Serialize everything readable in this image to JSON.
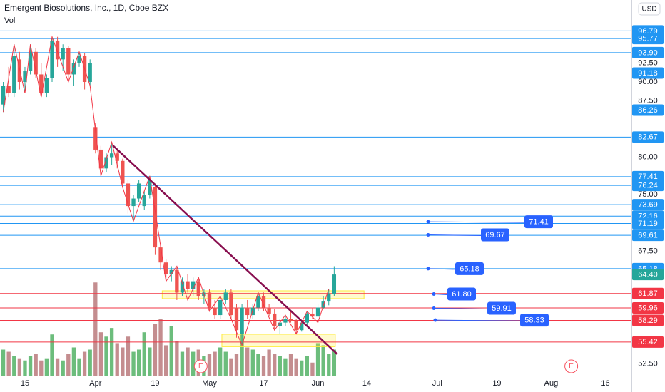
{
  "chart_data": {
    "type": "candlestick",
    "title": "Emergent Biosolutions, Inc., 1D, Cboe BZX",
    "volume_label": "Vol",
    "currency": "USD",
    "x": [
      -4,
      -3,
      -2,
      -1,
      0,
      1,
      2,
      3,
      4,
      5,
      6,
      7,
      8,
      9,
      10,
      11,
      12,
      13,
      14,
      15,
      16,
      17,
      18,
      19,
      20,
      21,
      22,
      23,
      24,
      25,
      26,
      27,
      28,
      29,
      30,
      31,
      32,
      33,
      34,
      35,
      36,
      37,
      38,
      39,
      40,
      41,
      42,
      43,
      44,
      45,
      46,
      47,
      48,
      49,
      50,
      51,
      52,
      53,
      54,
      55,
      56,
      57
    ],
    "open": [
      87,
      89.5,
      88.5,
      93,
      90,
      91.5,
      94,
      91,
      88.5,
      90.5,
      95.5,
      93,
      94.5,
      91,
      92.5,
      93.5,
      90,
      84,
      81,
      78.5,
      80,
      80.5,
      79.5,
      76.5,
      73.5,
      74.5,
      73.5,
      75,
      76,
      68,
      66,
      64.5,
      65,
      62,
      63.5,
      62.5,
      63.5,
      61.5,
      62,
      60,
      59,
      61,
      62,
      60,
      56.5,
      60,
      59,
      60,
      61.5,
      60,
      59.2,
      57.5,
      58,
      58.5,
      58.2,
      57,
      58,
      59.2,
      58.8,
      60,
      60.8,
      61.8
    ],
    "high": [
      90,
      92,
      95,
      94,
      92,
      95,
      94.5,
      92.5,
      91,
      96,
      96,
      95,
      94.8,
      93,
      94,
      93.8,
      93,
      84.5,
      81.5,
      80.5,
      82,
      81,
      79.8,
      77,
      75,
      77,
      75.5,
      77.5,
      76.5,
      68.5,
      66.5,
      65.5,
      65.5,
      64,
      64.5,
      64,
      64,
      62.5,
      62.5,
      61,
      61.5,
      62.5,
      62.5,
      60.5,
      60.5,
      61,
      60.5,
      62,
      62,
      60.5,
      59.8,
      58.5,
      59,
      59.5,
      58.5,
      58.3,
      59.5,
      60,
      60.5,
      61.5,
      62.5,
      65.5
    ],
    "low": [
      86,
      88,
      88,
      89,
      88.5,
      91,
      90.5,
      88,
      88,
      90,
      92,
      91.5,
      90,
      89.5,
      92,
      89,
      89.5,
      80.5,
      77.5,
      78,
      79,
      78.5,
      76,
      72.5,
      71.5,
      74,
      73,
      74.5,
      67,
      65,
      63.5,
      63.5,
      61,
      61.5,
      62,
      61.5,
      61,
      60.5,
      59.5,
      58.5,
      58.5,
      60.5,
      58.5,
      56,
      55,
      58.5,
      58.5,
      59.5,
      59.5,
      58.8,
      57,
      56.5,
      57.5,
      58,
      56.5,
      56.8,
      57.5,
      58.5,
      58,
      59.8,
      60.3,
      61.5
    ],
    "close": [
      89.5,
      88.5,
      93.5,
      90,
      91.5,
      94,
      91,
      88.5,
      90.5,
      95.5,
      93,
      94.5,
      91,
      92.5,
      93.5,
      90,
      92.5,
      81,
      78.5,
      80,
      80.5,
      79.5,
      76.5,
      73.5,
      74.5,
      76.5,
      75,
      77,
      68,
      66,
      64.5,
      65,
      62,
      63.5,
      62.5,
      63.5,
      61.5,
      62,
      60,
      59,
      61,
      62,
      59,
      57,
      60,
      59,
      60,
      61.5,
      60,
      59.2,
      57.5,
      58,
      58.5,
      58.2,
      57,
      58,
      59.2,
      58.8,
      60,
      60.8,
      61.8,
      64.4
    ],
    "volume": [
      1.2,
      1.1,
      0.9,
      0.8,
      0.7,
      0.9,
      1.0,
      0.7,
      0.8,
      1.9,
      0.8,
      0.7,
      1.0,
      1.3,
      0.8,
      1.1,
      1.2,
      4.3,
      2.0,
      1.8,
      2.2,
      1.5,
      1.3,
      1.8,
      1.1,
      1.2,
      2.0,
      1.3,
      2.4,
      2.6,
      1.4,
      2.3,
      1.6,
      1.1,
      1.3,
      1.1,
      1.2,
      0.9,
      1.0,
      1.1,
      1.3,
      1.1,
      0.8,
      1.0,
      2.1,
      1.3,
      1.2,
      1.0,
      0.9,
      1.2,
      1.0,
      0.9,
      0.8,
      1.0,
      0.8,
      0.7,
      0.9,
      0.6,
      1.5,
      1.4,
      1.0,
      1.2
    ],
    "up_color": "#26a69a",
    "down_color": "#ef5350",
    "volume_up_color": "#6cbd7c",
    "volume_down_color": "#c48d8f",
    "volume_lim": [
      0,
      5
    ],
    "xlim": [
      -4.6,
      111.8
    ],
    "xticks": [
      {
        "value": 0,
        "label": "15"
      },
      {
        "value": 13,
        "label": "Apr"
      },
      {
        "value": 24,
        "label": "19"
      },
      {
        "value": 34,
        "label": "May"
      },
      {
        "value": 44,
        "label": "17"
      },
      {
        "value": 54,
        "label": "Jun"
      },
      {
        "value": 63,
        "label": "14"
      },
      {
        "value": 76,
        "label": "Jul"
      },
      {
        "value": 87,
        "label": "19"
      },
      {
        "value": 97,
        "label": "Aug"
      },
      {
        "value": 107,
        "label": "16"
      }
    ],
    "ylim": [
      50.95,
      100.9
    ],
    "yticks": [
      {
        "value": 92.5,
        "label": "92.50"
      },
      {
        "value": 90,
        "label": "90.00"
      },
      {
        "value": 87.5,
        "label": "87.50"
      },
      {
        "value": 80,
        "label": "80.00"
      },
      {
        "value": 75,
        "label": "75.00"
      },
      {
        "value": 67.5,
        "label": "67.50"
      },
      {
        "value": 52.5,
        "label": "52.50"
      }
    ],
    "levels": [
      {
        "values": [
          96.79,
          95.77,
          93.9,
          91.18,
          86.26,
          82.67,
          77.41,
          76.24,
          73.69,
          72.16,
          71.19,
          69.61,
          65.18
        ],
        "value_labels": [
          "96.79",
          "95.77",
          "93.90",
          "91.18",
          "86.26",
          "82.67",
          "77.41",
          "76.24",
          "73.69",
          "72.16",
          "71.19",
          "69.61",
          "65.18"
        ],
        "color": "#2196f3"
      },
      {
        "values": [
          61.87,
          59.96,
          58.29,
          55.42
        ],
        "value_labels": [
          "61.87",
          "59.96",
          "58.29",
          "55.42"
        ],
        "color": "#f23645"
      }
    ],
    "last_price": 64.4,
    "last_price_label": "64.40",
    "callouts": {
      "values": [
        71.41,
        69.67,
        65.18,
        61.8,
        59.91,
        58.33
      ],
      "value_labels": [
        "71.41",
        "69.67",
        "65.18",
        "61.80",
        "59.91",
        "58.33"
      ],
      "color": "#2962ff"
    },
    "trendline": {
      "x": [
        16.2,
        57.6
      ],
      "values": [
        81.56,
        53.79
      ],
      "color": "#880e4f"
    },
    "zigzag": {
      "x": [
        -4,
        -2,
        0,
        1,
        3,
        5,
        8,
        10,
        12,
        14,
        16,
        18,
        20,
        23,
        26,
        28,
        30,
        32,
        34,
        36,
        38,
        40,
        43,
        46,
        48,
        50,
        52,
        54,
        56
      ],
      "values": [
        86,
        95,
        88.5,
        95,
        88,
        96,
        90,
        94,
        89.5,
        77.5,
        82,
        76,
        71.5,
        77.5,
        63.5,
        65.5,
        61,
        64,
        59.5,
        61.5,
        58.5,
        55,
        62,
        57,
        59,
        56.5,
        59.5,
        58,
        62.5
      ],
      "color": "#f23645"
    },
    "zones": [
      {
        "x": [
          25.3,
          62.5
        ],
        "values": [
          61.19,
          62.23
        ]
      },
      {
        "x": [
          36.3,
          57.2
        ],
        "values": [
          54.8,
          56.45
        ]
      }
    ],
    "zone_color": "#ffeb3b",
    "events": {
      "x": [
        32.4,
        100.7
      ],
      "labels": [
        "E",
        "E"
      ]
    }
  }
}
